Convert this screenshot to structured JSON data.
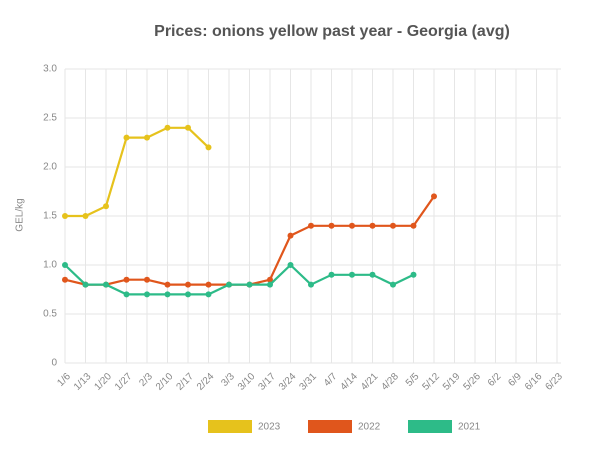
{
  "chart_data": {
    "type": "line",
    "title": "Prices: onions yellow past year - Georgia (avg)",
    "y_label": "GEL/kg",
    "categories": [
      "1/6",
      "1/13",
      "1/20",
      "1/27",
      "2/3",
      "2/10",
      "2/17",
      "2/24",
      "3/3",
      "3/10",
      "3/17",
      "3/24",
      "3/31",
      "4/7",
      "4/14",
      "4/21",
      "4/28",
      "5/5",
      "5/12",
      "5/19",
      "5/26",
      "6/2",
      "6/9",
      "6/16",
      "6/23"
    ],
    "series": [
      {
        "name": "2023",
        "color": "#e6c21c",
        "values": [
          1.5,
          1.5,
          1.6,
          2.3,
          2.3,
          2.4,
          2.4,
          2.2,
          null,
          null,
          null,
          null,
          null,
          null,
          null,
          null,
          null,
          null,
          null,
          null,
          null,
          null,
          null,
          null,
          null
        ]
      },
      {
        "name": "2022",
        "color": "#e0561c",
        "values": [
          0.85,
          0.8,
          0.8,
          0.85,
          0.85,
          0.8,
          0.8,
          0.8,
          0.8,
          0.8,
          0.85,
          1.3,
          1.4,
          1.4,
          1.4,
          1.4,
          1.4,
          1.4,
          1.7,
          null,
          null,
          null,
          null,
          null,
          null
        ]
      },
      {
        "name": "2021",
        "color": "#2dbb88",
        "values": [
          1.0,
          0.8,
          0.8,
          0.7,
          0.7,
          0.7,
          0.7,
          0.7,
          0.8,
          0.8,
          0.8,
          1.0,
          0.8,
          0.9,
          0.9,
          0.9,
          0.8,
          0.9,
          null,
          null,
          null,
          null,
          null,
          null,
          null
        ]
      }
    ],
    "ylim": [
      0,
      3
    ],
    "yticks": [
      0,
      0.5,
      {
        "value": 1,
        "label": "1.0"
      },
      1.5,
      {
        "value": 2,
        "label": "2.0"
      },
      2.5,
      {
        "value": 3,
        "label": "3.0"
      }
    ],
    "grid": true,
    "legend": "bottom"
  }
}
